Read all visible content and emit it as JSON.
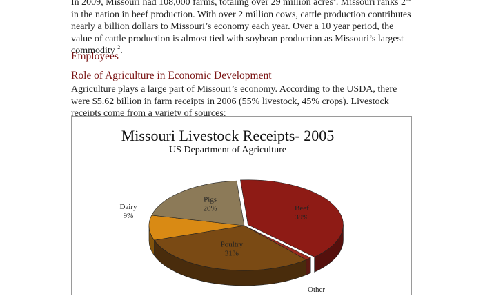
{
  "intro": {
    "line1_a": "In 2009, Missouri had 108,000 farms, totaling over 29 million acres",
    "sup1": "1",
    "line1_b": ". Missouri ranks 2",
    "sup_nd": "nd",
    "line1_c": " in",
    "rest": "the nation in beef production. With over 2 million cows, cattle production contributes nearly a billion dollars to Missouri’s economy each year. Over a 10 year period, the value of cattle production is almost tied with soybean production as Missouri’s largest commodity",
    "sup2": "2",
    "end": "."
  },
  "headings": {
    "employees": "Employees",
    "role": "Role of Agriculture in Economic Development"
  },
  "body": {
    "paragraph": "Agriculture plays a large part of Missouri’s economy. According to the USDA, there were $5.62 billion in farm receipts in 2006 (55% livestock, 45% crops). Livestock receipts come from a variety of sources:"
  },
  "chart_data": {
    "type": "pie",
    "title": "Missouri Livestock Receipts- 2005",
    "subtitle": "US Department of Agriculture",
    "categories": [
      "Beef",
      "Other",
      "Poultry",
      "Dairy",
      "Pigs"
    ],
    "values": [
      39,
      1,
      31,
      9,
      20
    ],
    "value_labels": [
      "39%",
      "",
      "31%",
      "9%",
      "20%"
    ],
    "colors": [
      "#8e1b15",
      "#9a2a1e",
      "#7a4a14",
      "#d98a14",
      "#8c7a58"
    ],
    "style": "3d-exploded"
  }
}
